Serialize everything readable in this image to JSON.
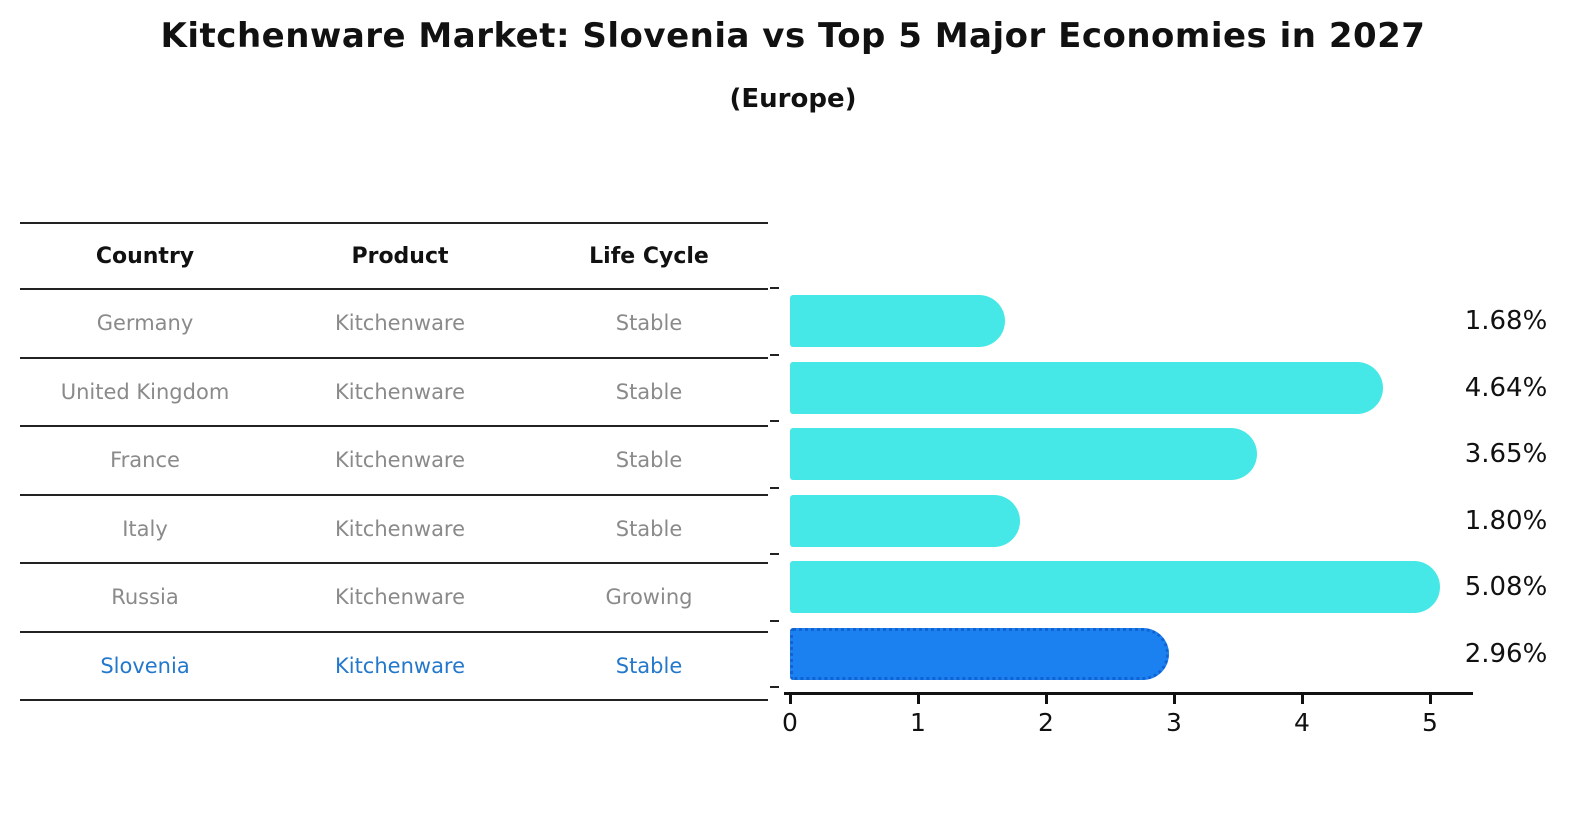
{
  "title": "Kitchenware Market: Slovenia vs Top 5 Major Economies in 2027",
  "subtitle": "(Europe)",
  "table": {
    "headers": {
      "country": "Country",
      "product": "Product",
      "life_cycle": "Life Cycle"
    },
    "rows": [
      {
        "country": "Germany",
        "product": "Kitchenware",
        "life_cycle": "Stable",
        "value_label": "1.68%",
        "highlight": false
      },
      {
        "country": "United Kingdom",
        "product": "Kitchenware",
        "life_cycle": "Stable",
        "value_label": "4.64%",
        "highlight": false
      },
      {
        "country": "France",
        "product": "Kitchenware",
        "life_cycle": "Stable",
        "value_label": "3.65%",
        "highlight": false
      },
      {
        "country": "Italy",
        "product": "Kitchenware",
        "life_cycle": "Stable",
        "value_label": "1.80%",
        "highlight": false
      },
      {
        "country": "Russia",
        "product": "Kitchenware",
        "life_cycle": "Growing",
        "value_label": "5.08%",
        "highlight": false
      },
      {
        "country": "Slovenia",
        "product": "Kitchenware",
        "life_cycle": "Stable",
        "value_label": "2.96%",
        "highlight": true
      }
    ]
  },
  "chart_data": {
    "type": "bar",
    "orientation": "horizontal",
    "title": "Kitchenware Market: Slovenia vs Top 5 Major Economies in 2027",
    "subtitle": "(Europe)",
    "categories": [
      "Germany",
      "United Kingdom",
      "France",
      "Italy",
      "Russia",
      "Slovenia"
    ],
    "values": [
      1.68,
      4.64,
      3.65,
      1.8,
      5.08,
      2.96
    ],
    "value_labels": [
      "1.68%",
      "4.64%",
      "3.65%",
      "1.80%",
      "5.08%",
      "2.96%"
    ],
    "xlabel": "",
    "ylabel": "",
    "xlim": [
      0,
      5.34
    ],
    "x_ticks": [
      0,
      1,
      2,
      3,
      4,
      5
    ],
    "grid": false,
    "legend": false,
    "bar_color": "#45e8e6",
    "highlight_bar_color": "#1b80f0",
    "highlight_border_color": "#1163d2",
    "highlighted_category": "Slovenia"
  },
  "colors": {
    "background": "#ffffff",
    "title_text": "#111111",
    "table_header_text": "#111111",
    "table_row_text": "#8a8a8a",
    "highlight_row_text": "#2478cc",
    "table_line": "#222222",
    "axis": "#111111"
  }
}
